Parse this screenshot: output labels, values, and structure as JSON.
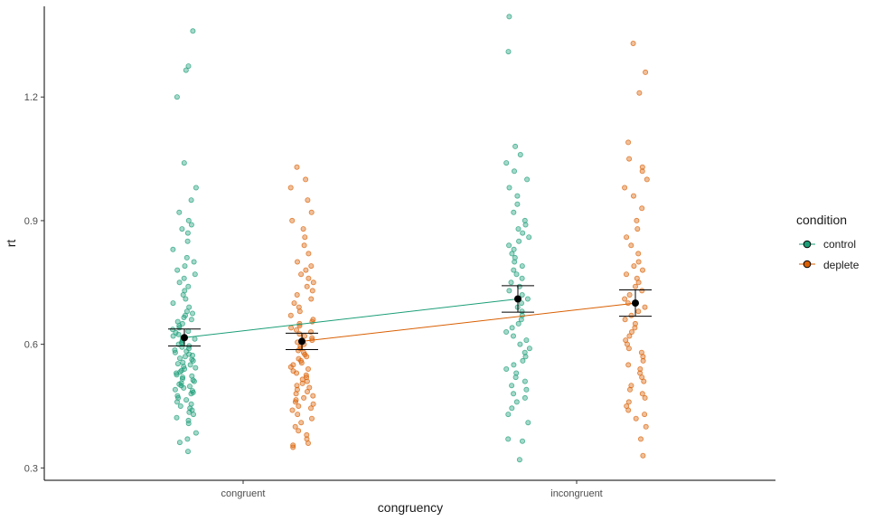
{
  "chart_data": {
    "type": "scatter",
    "title": "",
    "xlabel": "congruency",
    "ylabel": "rt",
    "categories": [
      "congruent",
      "incongruent"
    ],
    "ylim": [
      0.27,
      1.42
    ],
    "yticks": [
      0.3,
      0.6,
      0.9,
      1.2
    ],
    "ytick_labels": [
      "0.3",
      "0.6",
      "0.9",
      "1.2"
    ],
    "grid": false,
    "legend": {
      "title": "condition",
      "position": "right",
      "entries": [
        "control",
        "deplete"
      ]
    },
    "colors": {
      "control": "#1B9E77",
      "deplete": "#D95F02",
      "summary": "#000000"
    },
    "series": [
      {
        "name": "control",
        "means": [
          0.616,
          0.71
        ],
        "ci_lower": [
          0.596,
          0.678
        ],
        "ci_upper": [
          0.637,
          0.742
        ],
        "points": [
          [
            0.34,
            0.362,
            0.37,
            0.385,
            0.408,
            0.415,
            0.422,
            0.43,
            0.435,
            0.44,
            0.445,
            0.45,
            0.455,
            0.46,
            0.465,
            0.47,
            0.475,
            0.48,
            0.483,
            0.487,
            0.49,
            0.494,
            0.498,
            0.5,
            0.503,
            0.506,
            0.51,
            0.513,
            0.516,
            0.52,
            0.523,
            0.526,
            0.53,
            0.533,
            0.536,
            0.54,
            0.543,
            0.546,
            0.55,
            0.553,
            0.556,
            0.56,
            0.563,
            0.566,
            0.57,
            0.573,
            0.576,
            0.58,
            0.583,
            0.586,
            0.59,
            0.593,
            0.596,
            0.6,
            0.603,
            0.606,
            0.61,
            0.613,
            0.616,
            0.62,
            0.624,
            0.628,
            0.632,
            0.636,
            0.64,
            0.645,
            0.65,
            0.655,
            0.66,
            0.665,
            0.67,
            0.675,
            0.68,
            0.69,
            0.7,
            0.71,
            0.72,
            0.73,
            0.74,
            0.75,
            0.76,
            0.77,
            0.78,
            0.79,
            0.8,
            0.81,
            0.83,
            0.85,
            0.87,
            0.88,
            0.89,
            0.9,
            0.92,
            0.95,
            0.98,
            1.04,
            1.2,
            1.265,
            1.275,
            1.36
          ],
          [
            0.32,
            0.365,
            0.37,
            0.41,
            0.43,
            0.445,
            0.46,
            0.47,
            0.48,
            0.49,
            0.5,
            0.51,
            0.52,
            0.53,
            0.54,
            0.55,
            0.56,
            0.57,
            0.58,
            0.59,
            0.6,
            0.61,
            0.62,
            0.63,
            0.64,
            0.65,
            0.66,
            0.67,
            0.68,
            0.69,
            0.7,
            0.71,
            0.72,
            0.73,
            0.74,
            0.75,
            0.76,
            0.77,
            0.78,
            0.79,
            0.8,
            0.81,
            0.82,
            0.83,
            0.84,
            0.85,
            0.86,
            0.87,
            0.88,
            0.89,
            0.9,
            0.92,
            0.94,
            0.96,
            0.98,
            1.0,
            1.02,
            1.04,
            1.06,
            1.08,
            1.31,
            1.395
          ]
        ]
      },
      {
        "name": "deplete",
        "means": [
          0.607,
          0.7
        ],
        "ci_lower": [
          0.587,
          0.668
        ],
        "ci_upper": [
          0.627,
          0.732
        ],
        "points": [
          [
            0.35,
            0.355,
            0.36,
            0.37,
            0.38,
            0.39,
            0.4,
            0.41,
            0.42,
            0.43,
            0.44,
            0.445,
            0.45,
            0.455,
            0.46,
            0.465,
            0.47,
            0.475,
            0.48,
            0.485,
            0.49,
            0.495,
            0.5,
            0.505,
            0.51,
            0.515,
            0.52,
            0.525,
            0.53,
            0.535,
            0.54,
            0.545,
            0.55,
            0.555,
            0.56,
            0.565,
            0.57,
            0.575,
            0.58,
            0.585,
            0.59,
            0.595,
            0.6,
            0.605,
            0.61,
            0.615,
            0.62,
            0.625,
            0.63,
            0.635,
            0.64,
            0.645,
            0.65,
            0.655,
            0.66,
            0.67,
            0.68,
            0.69,
            0.7,
            0.71,
            0.72,
            0.73,
            0.74,
            0.75,
            0.76,
            0.77,
            0.78,
            0.79,
            0.8,
            0.82,
            0.84,
            0.86,
            0.88,
            0.9,
            0.92,
            0.95,
            0.98,
            1.0,
            1.03
          ],
          [
            0.33,
            0.37,
            0.4,
            0.42,
            0.43,
            0.44,
            0.45,
            0.46,
            0.47,
            0.48,
            0.49,
            0.5,
            0.51,
            0.52,
            0.53,
            0.54,
            0.55,
            0.56,
            0.57,
            0.58,
            0.59,
            0.6,
            0.61,
            0.62,
            0.63,
            0.64,
            0.65,
            0.66,
            0.67,
            0.68,
            0.69,
            0.7,
            0.71,
            0.72,
            0.73,
            0.74,
            0.75,
            0.76,
            0.77,
            0.78,
            0.79,
            0.8,
            0.82,
            0.84,
            0.86,
            0.88,
            0.9,
            0.93,
            0.96,
            0.98,
            1.0,
            1.02,
            1.03,
            1.05,
            1.09,
            1.21,
            1.26,
            1.33
          ]
        ]
      }
    ]
  }
}
